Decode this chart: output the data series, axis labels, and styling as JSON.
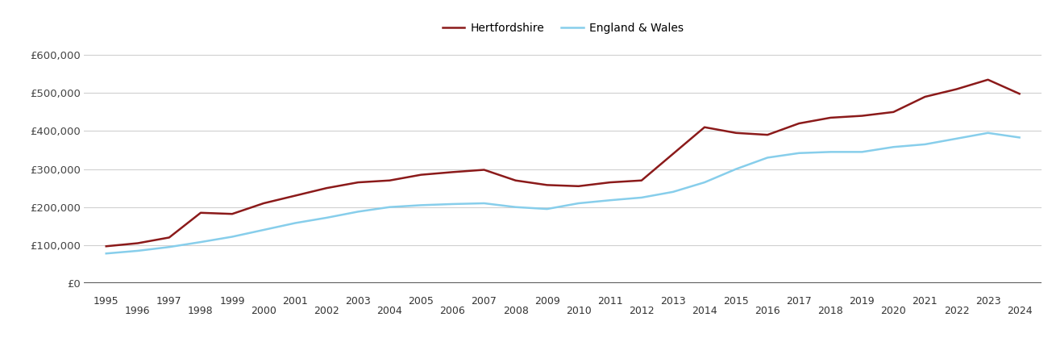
{
  "hertfordshire": {
    "years": [
      1995,
      1996,
      1997,
      1998,
      1999,
      2000,
      2001,
      2002,
      2003,
      2004,
      2005,
      2006,
      2007,
      2008,
      2009,
      2010,
      2011,
      2012,
      2013,
      2014,
      2015,
      2016,
      2017,
      2018,
      2019,
      2020,
      2021,
      2022,
      2023,
      2024
    ],
    "values": [
      97000,
      105000,
      120000,
      185000,
      182000,
      210000,
      230000,
      250000,
      265000,
      270000,
      285000,
      292000,
      298000,
      270000,
      258000,
      255000,
      265000,
      270000,
      340000,
      410000,
      395000,
      390000,
      420000,
      435000,
      440000,
      450000,
      490000,
      510000,
      535000,
      498000
    ]
  },
  "england_wales": {
    "years": [
      1995,
      1996,
      1997,
      1998,
      1999,
      2000,
      2001,
      2002,
      2003,
      2004,
      2005,
      2006,
      2007,
      2008,
      2009,
      2010,
      2011,
      2012,
      2013,
      2014,
      2015,
      2016,
      2017,
      2018,
      2019,
      2020,
      2021,
      2022,
      2023,
      2024
    ],
    "values": [
      78000,
      85000,
      95000,
      108000,
      122000,
      140000,
      158000,
      172000,
      188000,
      200000,
      205000,
      208000,
      210000,
      200000,
      195000,
      210000,
      218000,
      225000,
      240000,
      265000,
      300000,
      330000,
      342000,
      345000,
      345000,
      358000,
      365000,
      380000,
      395000,
      383000
    ]
  },
  "hert_color": "#8B1A1A",
  "ew_color": "#87CEEB",
  "line_width": 1.8,
  "ylim": [
    0,
    630000
  ],
  "yticks": [
    0,
    100000,
    200000,
    300000,
    400000,
    500000,
    600000
  ],
  "ytick_labels": [
    "£0",
    "£100,000",
    "£200,000",
    "£300,000",
    "£400,000",
    "£500,000",
    "£600,000"
  ],
  "legend_hert": "Hertfordshire",
  "legend_ew": "England & Wales",
  "background_color": "#ffffff",
  "grid_color": "#d0d0d0",
  "odd_years": [
    1995,
    1997,
    1999,
    2001,
    2003,
    2005,
    2007,
    2009,
    2011,
    2013,
    2015,
    2017,
    2019,
    2021,
    2023
  ],
  "even_years": [
    1996,
    1998,
    2000,
    2002,
    2004,
    2006,
    2008,
    2010,
    2012,
    2014,
    2016,
    2018,
    2020,
    2022,
    2024
  ]
}
